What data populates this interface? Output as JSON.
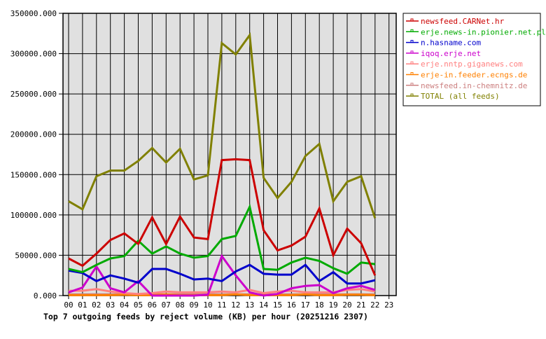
{
  "chart_data": {
    "type": "line",
    "title": "Top 7 outgoing feeds by reject volume (KB) per hour (20251216 2307)",
    "xlabel": "",
    "ylabel": "",
    "ylim": [
      0,
      350000
    ],
    "yticks": [
      "0.000",
      "50000.000",
      "100000.000",
      "150000.000",
      "200000.000",
      "250000.000",
      "300000.000",
      "350000.000"
    ],
    "x": [
      "00",
      "01",
      "02",
      "03",
      "04",
      "05",
      "06",
      "07",
      "08",
      "09",
      "10",
      "11",
      "12",
      "13",
      "14",
      "15",
      "16",
      "17",
      "18",
      "19",
      "20",
      "21",
      "22",
      "23"
    ],
    "grid": true,
    "legend_position": "right",
    "plot_background": "#e0e0e0",
    "series": [
      {
        "name": "newsfeed.CARNet.hr",
        "color": "#cc0000",
        "values": [
          46000,
          37000,
          52000,
          69000,
          77000,
          64000,
          97000,
          64000,
          98000,
          72000,
          70000,
          168000,
          169000,
          168000,
          81000,
          56000,
          62000,
          73000,
          108000,
          50000,
          83000,
          65000,
          25000
        ]
      },
      {
        "name": "erje.news-in.pionier.net.pl",
        "color": "#00aa00",
        "values": [
          33000,
          29000,
          38000,
          46000,
          49000,
          68000,
          52000,
          61000,
          52000,
          47000,
          49000,
          70000,
          74000,
          110000,
          33000,
          32000,
          41000,
          47000,
          43000,
          34000,
          27000,
          41000,
          39000
        ]
      },
      {
        "name": "n.hasname.com",
        "color": "#0000cc",
        "values": [
          31000,
          28000,
          18000,
          25000,
          21000,
          16000,
          33000,
          33000,
          27000,
          20000,
          21000,
          18000,
          30000,
          38000,
          27000,
          26000,
          26000,
          38000,
          18000,
          29000,
          15000,
          15000,
          19000
        ]
      },
      {
        "name": "iqoq.erje.net",
        "color": "#cc00cc",
        "values": [
          4000,
          10000,
          36000,
          9000,
          4000,
          18000,
          0,
          0,
          0,
          0,
          1000,
          49000,
          25000,
          4000,
          0,
          2000,
          9000,
          12000,
          13000,
          3000,
          9000,
          12000,
          7000
        ]
      },
      {
        "name": "erje.nntp.giganews.com",
        "color": "#ff8080",
        "values": [
          6000,
          6000,
          8000,
          5000,
          3000,
          2000,
          3000,
          5000,
          4000,
          4000,
          4000,
          5000,
          4000,
          7000,
          3000,
          5000,
          6000,
          4000,
          4000,
          4000,
          7000,
          8000,
          5000
        ]
      },
      {
        "name": "erje-in.feeder.ecngs.de",
        "color": "#ff8000",
        "values": [
          500,
          500,
          500,
          500,
          1000,
          500,
          500,
          1500,
          500,
          500,
          500,
          500,
          1500,
          500,
          500,
          500,
          500,
          1500,
          500,
          500,
          1000,
          1000,
          500
        ]
      },
      {
        "name": "newsfeed.in-chemnitz.de",
        "color": "#cc8080",
        "values": [
          1500,
          1500,
          1500,
          1500,
          1500,
          1500,
          1500,
          1500,
          1500,
          1500,
          1500,
          1500,
          1500,
          1500,
          1500,
          1500,
          1500,
          1500,
          1500,
          1500,
          1500,
          1500,
          1500
        ]
      },
      {
        "name": "TOTAL (all feeds)",
        "color": "#808000",
        "values": [
          117000,
          107000,
          148000,
          155000,
          155000,
          167000,
          183000,
          165000,
          182000,
          144000,
          149000,
          313000,
          299000,
          323000,
          146000,
          121000,
          141000,
          173000,
          188000,
          117000,
          141000,
          148000,
          96000
        ]
      }
    ]
  }
}
